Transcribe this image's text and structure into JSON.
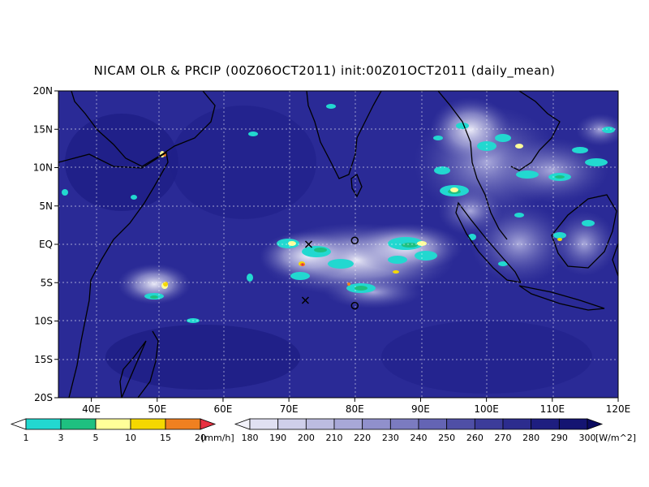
{
  "title": "NICAM OLR & PRCIP (00Z06OCT2011) init:00Z01OCT2011 (daily_mean)",
  "lat_labels": [
    "20N",
    "15N",
    "10N",
    "5N",
    "EQ",
    "5S",
    "10S",
    "15S",
    "20S"
  ],
  "lon_labels": [
    "40E",
    "50E",
    "60E",
    "70E",
    "80E",
    "90E",
    "100E",
    "110E",
    "120E"
  ],
  "map_extent": {
    "lon_min": 35,
    "lon_max": 120,
    "lat_min": -20,
    "lat_max": 20
  },
  "precip_colorbar": {
    "labels": [
      "1",
      "3",
      "5",
      "10",
      "15",
      "20"
    ],
    "unit": "[mm/h]",
    "colors": [
      "#ffffff",
      "#22d8d0",
      "#1ec080",
      "#ffff99",
      "#f5d800",
      "#f08020",
      "#e83040"
    ]
  },
  "olr_colorbar": {
    "labels": [
      "180",
      "190",
      "200",
      "210",
      "220",
      "230",
      "240",
      "250",
      "260",
      "270",
      "280",
      "290",
      "300"
    ],
    "unit": "[W/m^2]",
    "colors": [
      "#f2f2fa",
      "#e0e0f2",
      "#cfcfea",
      "#bcbce0",
      "#a8a8d8",
      "#9090cc",
      "#7b7bc0",
      "#6464b4",
      "#4f4fa6",
      "#3c3c9a",
      "#2c2c8e",
      "#1e1e80",
      "#141472",
      "#0a0a60"
    ]
  },
  "markers": [
    {
      "type": "x",
      "lon": 73,
      "lat": 0
    },
    {
      "type": "x",
      "lon": 72.5,
      "lat": -7.3
    },
    {
      "type": "o",
      "lon": 80,
      "lat": 0.5
    },
    {
      "type": "o",
      "lon": 80,
      "lat": -8
    }
  ]
}
